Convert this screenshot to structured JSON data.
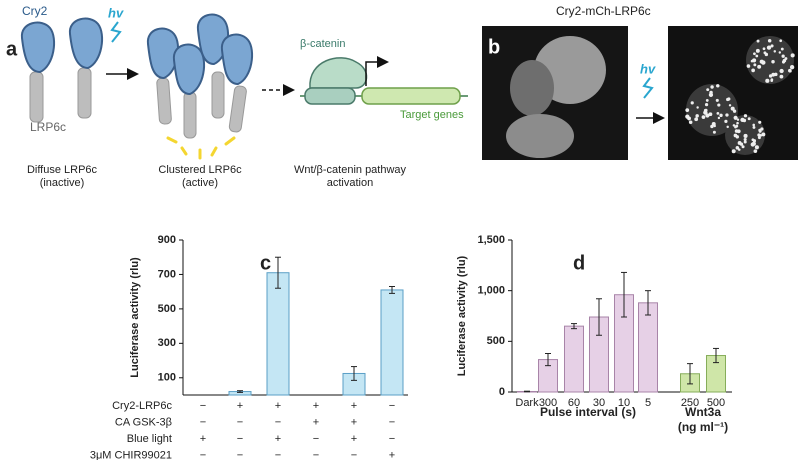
{
  "panel_a": {
    "label": "a",
    "cry2": "Cry2",
    "hv": "hv",
    "lrp6c": "LRP6c",
    "beta_catenin": "β-catenin",
    "target_genes": "Target genes",
    "captions": [
      [
        "Diffuse LRP6c",
        "(inactive)"
      ],
      [
        "Clustered LRP6c",
        "(active)"
      ],
      [
        "Wnt/β-catenin pathway",
        "activation"
      ]
    ]
  },
  "panel_b": {
    "label": "b",
    "title": "Cry2-mCh-LRP6c",
    "hv": "hv"
  },
  "chart_data": [
    {
      "type": "bar",
      "panel_label": "c",
      "ylabel": "Luciferase activity (rlu)",
      "values": [
        null,
        20,
        710,
        null,
        125,
        610
      ],
      "errors": [
        null,
        5,
        90,
        null,
        40,
        20
      ],
      "color": "#c4e6f4",
      "edge": "#5a9fc6",
      "ylim": [
        0,
        900
      ],
      "yticks": [
        100,
        300,
        500,
        700,
        900
      ],
      "conditions": [
        {
          "name": "Cry2-LRP6c",
          "marks": [
            "−",
            "+",
            "+",
            "+",
            "+",
            "−"
          ]
        },
        {
          "name": "CA GSK-3β",
          "marks": [
            "−",
            "−",
            "−",
            "+",
            "+",
            "−"
          ]
        },
        {
          "name": "Blue light",
          "marks": [
            "+",
            "−",
            "+",
            "−",
            "+",
            "−"
          ]
        },
        {
          "name": "3μM CHIR99021",
          "marks": [
            "−",
            "−",
            "−",
            "−",
            "−",
            "+"
          ]
        }
      ]
    },
    {
      "type": "bar",
      "panel_label": "d",
      "ylabel": "Luciferase activity (rlu)",
      "categories": [
        "Dark",
        "300",
        "60",
        "30",
        "10",
        "5",
        "250",
        "500"
      ],
      "values": [
        5,
        320,
        650,
        740,
        960,
        880,
        180,
        360
      ],
      "errors": [
        3,
        60,
        25,
        180,
        220,
        120,
        100,
        70
      ],
      "colors": [
        "#e6d0e6",
        "#e6d0e6",
        "#e6d0e6",
        "#e6d0e6",
        "#e6d0e6",
        "#e6d0e6",
        "#cfe6a8",
        "#cfe6a8"
      ],
      "edges": [
        "#a884a8",
        "#a884a8",
        "#a884a8",
        "#a884a8",
        "#a884a8",
        "#a884a8",
        "#86ad5a",
        "#86ad5a"
      ],
      "ylim": [
        0,
        1500
      ],
      "yticks": [
        0,
        500,
        {
          "value": 1000,
          "label": "1,000"
        },
        {
          "value": 1500,
          "label": "1,500"
        }
      ],
      "groups": [
        {
          "name": "Pulse interval (s)"
        },
        {
          "name": "Wnt3a",
          "unit": "(ng ml⁻¹)"
        }
      ]
    }
  ]
}
